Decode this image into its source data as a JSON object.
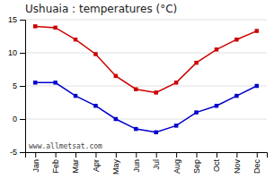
{
  "chart_data": {
    "type": "line",
    "title": "Ushuaia : temperatures (°C)",
    "categories": [
      "Jan",
      "Feb",
      "Mar",
      "Apr",
      "May",
      "Jun",
      "Jul",
      "Aug",
      "Sep",
      "Oct",
      "Nov",
      "Dec"
    ],
    "series": [
      {
        "color": "#cc0000",
        "marker": "square",
        "values": [
          14,
          13.8,
          12,
          9.8,
          6.5,
          4.5,
          4.0,
          5.5,
          8.5,
          10.5,
          12,
          13.3
        ]
      },
      {
        "color": "#0000cc",
        "marker": "square",
        "values": [
          5.5,
          5.5,
          3.5,
          2.0,
          0.0,
          -1.5,
          -2.0,
          -1.0,
          1.0,
          2.0,
          3.5,
          5.0
        ]
      }
    ],
    "ylim": [
      -5,
      15
    ],
    "yticks": [
      -5,
      0,
      5,
      10,
      15
    ],
    "grid": true,
    "annotations": [
      "www.allmetsat.com"
    ]
  }
}
